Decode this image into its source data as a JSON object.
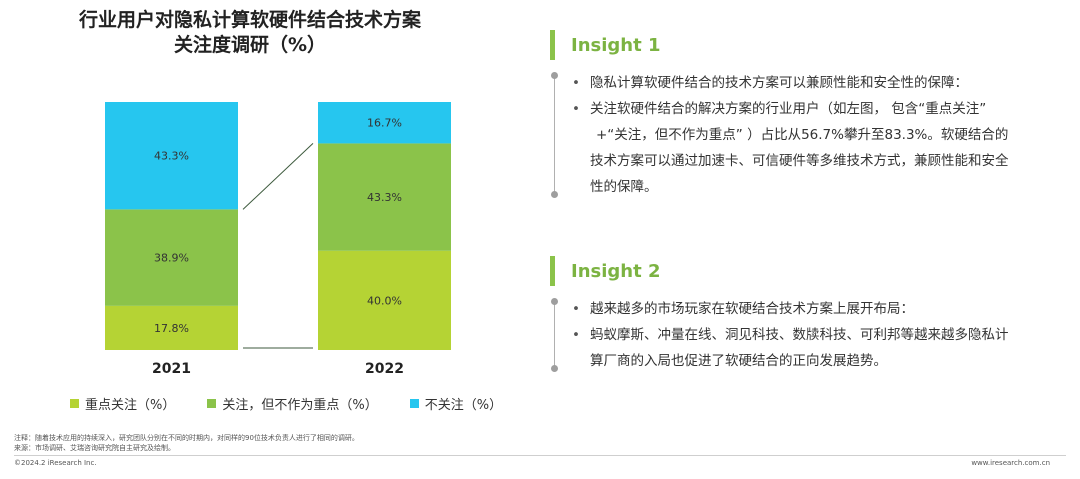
{
  "chart": {
    "title_line1": "行业用户对隐私计算软硬件结合技术方案",
    "title_line2": "关注度调研（%）"
  },
  "chart_data": {
    "type": "bar",
    "stacked": true,
    "title": "行业用户对隐私计算软硬件结合技术方案关注度调研（%）",
    "categories": [
      "2021",
      "2022"
    ],
    "series": [
      {
        "name": "重点关注（%）",
        "values": [
          17.8,
          40.0
        ],
        "labels": [
          "17.8%",
          "40.0%"
        ],
        "color": "#b5d334"
      },
      {
        "name": "关注，但不作为重点（%）",
        "values": [
          38.9,
          43.3
        ],
        "labels": [
          "38.9%",
          "43.3%"
        ],
        "color": "#8bc34a"
      },
      {
        "name": "不关注（%）",
        "values": [
          43.3,
          16.7
        ],
        "labels": [
          "43.3%",
          "16.7%"
        ],
        "color": "#26c6ef"
      }
    ],
    "ylim": [
      0,
      100
    ],
    "grid": false,
    "legend": "bottom"
  },
  "insight1": {
    "title": "Insight 1",
    "bullets": [
      [
        "隐私计算软硬件结合的技术方案可以兼顾性能和安全性的保障："
      ],
      [
        "关注软硬件结合的解决方案的行业用户（如左图， 包含“重点关注”",
        "+“关注，但不作为重点” ）占比从56.7%攀升至83.3%。软硬结合的",
        "技术方案可以通过加速卡、可信硬件等多维技术方式，兼顾性能和安全",
        "性的保障。"
      ]
    ]
  },
  "insight2": {
    "title": "Insight 2",
    "bullets": [
      [
        "越来越多的市场玩家在软硬结合技术方案上展开布局："
      ],
      [
        "蚂蚁摩斯、冲量在线、洞见科技、数牍科技、可利邦等越来越多隐私计",
        "算厂商的入局也促进了软硬结合的正向发展趋势。"
      ]
    ]
  },
  "footer": {
    "note": "注释：随着技术应用的持续深入，研究团队分别在不同的时期内，对同样的90位技术负责人进行了相同的调研。",
    "source": "来源：市场调研、艾瑞咨询研究院自主研究及绘制。",
    "copyright": "©2024.2 iResearch Inc.",
    "site": "www.iresearch.com.cn"
  }
}
